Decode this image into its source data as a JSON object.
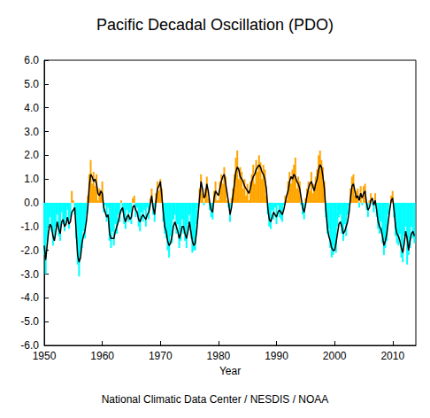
{
  "chart_data": {
    "type": "bar",
    "title": "Pacific Decadal Oscillation (PDO)",
    "xlabel": "Year",
    "annotations": [
      "National Climatic Data Center / NESDIS / NOAA"
    ],
    "xlim": [
      1950,
      2014
    ],
    "xticks": [
      1950,
      1960,
      1970,
      1980,
      1990,
      2000,
      2010
    ],
    "ylim": [
      -6,
      6
    ],
    "yticks": [
      {
        "value": -6,
        "label": "-6.0"
      },
      {
        "value": -5,
        "label": "-5.0"
      },
      {
        "value": -4,
        "label": "-4.0"
      },
      {
        "value": -3,
        "label": "-3.0"
      },
      {
        "value": -2,
        "label": "-2.0"
      },
      {
        "value": -1,
        "label": "-1.0"
      },
      {
        "value": 0,
        "label": "0.0"
      },
      {
        "value": 1,
        "label": "1.0"
      },
      {
        "value": 2,
        "label": "2.0"
      },
      {
        "value": 3,
        "label": "3.0"
      },
      {
        "value": 4,
        "label": "4.0"
      },
      {
        "value": 5,
        "label": "5.0"
      },
      {
        "value": 6,
        "label": "6.0"
      }
    ],
    "grid": false,
    "x": [
      1950,
      1950.25,
      1950.5,
      1950.75,
      1951,
      1951.25,
      1951.5,
      1951.75,
      1952,
      1952.25,
      1952.5,
      1952.75,
      1953,
      1953.25,
      1953.5,
      1953.75,
      1954,
      1954.25,
      1954.5,
      1954.75,
      1955,
      1955.25,
      1955.5,
      1955.75,
      1956,
      1956.25,
      1956.5,
      1956.75,
      1957,
      1957.25,
      1957.5,
      1957.75,
      1958,
      1958.25,
      1958.5,
      1958.75,
      1959,
      1959.25,
      1959.5,
      1959.75,
      1960,
      1960.25,
      1960.5,
      1960.75,
      1961,
      1961.25,
      1961.5,
      1961.75,
      1962,
      1962.25,
      1962.5,
      1962.75,
      1963,
      1963.25,
      1963.5,
      1963.75,
      1964,
      1964.25,
      1964.5,
      1964.75,
      1965,
      1965.25,
      1965.5,
      1965.75,
      1966,
      1966.25,
      1966.5,
      1966.75,
      1967,
      1967.25,
      1967.5,
      1967.75,
      1968,
      1968.25,
      1968.5,
      1968.75,
      1969,
      1969.25,
      1969.5,
      1969.75,
      1970,
      1970.25,
      1970.5,
      1970.75,
      1971,
      1971.25,
      1971.5,
      1971.75,
      1972,
      1972.25,
      1972.5,
      1972.75,
      1973,
      1973.25,
      1973.5,
      1973.75,
      1974,
      1974.25,
      1974.5,
      1974.75,
      1975,
      1975.25,
      1975.5,
      1975.75,
      1976,
      1976.25,
      1976.5,
      1976.75,
      1977,
      1977.25,
      1977.5,
      1977.75,
      1978,
      1978.25,
      1978.5,
      1978.75,
      1979,
      1979.25,
      1979.5,
      1979.75,
      1980,
      1980.25,
      1980.5,
      1980.75,
      1981,
      1981.25,
      1981.5,
      1981.75,
      1982,
      1982.25,
      1982.5,
      1982.75,
      1983,
      1983.25,
      1983.5,
      1983.75,
      1984,
      1984.25,
      1984.5,
      1984.75,
      1985,
      1985.25,
      1985.5,
      1985.75,
      1986,
      1986.25,
      1986.5,
      1986.75,
      1987,
      1987.25,
      1987.5,
      1987.75,
      1988,
      1988.25,
      1988.5,
      1988.75,
      1989,
      1989.25,
      1989.5,
      1989.75,
      1990,
      1990.25,
      1990.5,
      1990.75,
      1991,
      1991.25,
      1991.5,
      1991.75,
      1992,
      1992.25,
      1992.5,
      1992.75,
      1993,
      1993.25,
      1993.5,
      1993.75,
      1994,
      1994.25,
      1994.5,
      1994.75,
      1995,
      1995.25,
      1995.5,
      1995.75,
      1996,
      1996.25,
      1996.5,
      1996.75,
      1997,
      1997.25,
      1997.5,
      1997.75,
      1998,
      1998.25,
      1998.5,
      1998.75,
      1999,
      1999.25,
      1999.5,
      1999.75,
      2000,
      2000.25,
      2000.5,
      2000.75,
      2001,
      2001.25,
      2001.5,
      2001.75,
      2002,
      2002.25,
      2002.5,
      2002.75,
      2003,
      2003.25,
      2003.5,
      2003.75,
      2004,
      2004.25,
      2004.5,
      2004.75,
      2005,
      2005.25,
      2005.5,
      2005.75,
      2006,
      2006.25,
      2006.5,
      2006.75,
      2007,
      2007.25,
      2007.5,
      2007.75,
      2008,
      2008.25,
      2008.5,
      2008.75,
      2009,
      2009.25,
      2009.5,
      2009.75,
      2010,
      2010.25,
      2010.5,
      2010.75,
      2011,
      2011.25,
      2011.5,
      2011.75,
      2012,
      2012.25,
      2012.5,
      2012.75,
      2013,
      2013.25,
      2013.5,
      2013.75
    ],
    "series": [
      {
        "type": "bar",
        "values": [
          -2.2,
          -3.0,
          -1.6,
          -1.0,
          -0.6,
          -1.2,
          -1.8,
          -1.5,
          -1.0,
          -0.5,
          -1.4,
          -1.6,
          -0.4,
          -0.9,
          -1.2,
          -0.7,
          -0.3,
          -1.1,
          -0.6,
          0.5,
          0.1,
          -0.5,
          -1.5,
          -2.6,
          -3.1,
          -2.2,
          -1.9,
          -1.2,
          -1.5,
          -0.5,
          0.3,
          1.2,
          1.8,
          0.8,
          1.3,
          0.7,
          1.2,
          0.1,
          0.6,
          0.4,
          0.9,
          -0.4,
          -0.1,
          -0.8,
          -0.2,
          -1.6,
          -1.9,
          -1.2,
          -1.8,
          -0.9,
          -1.3,
          -0.5,
          -0.8,
          0.1,
          -0.4,
          -0.9,
          -1.1,
          -0.3,
          -0.8,
          -0.4,
          -0.9,
          0.2,
          0.3,
          -0.6,
          -0.2,
          -1.0,
          -1.2,
          -0.4,
          -0.8,
          -0.3,
          -1.0,
          -0.2,
          -0.7,
          0.2,
          0.6,
          -0.5,
          -0.8,
          0.4,
          0.9,
          0.5,
          1.0,
          0.6,
          -0.8,
          -1.3,
          -1.5,
          -2.0,
          -2.3,
          -1.4,
          -1.7,
          -0.7,
          -0.5,
          -1.3,
          -0.9,
          -1.9,
          -1.6,
          -0.7,
          -1.3,
          -1.6,
          -1.9,
          -0.9,
          -0.5,
          -1.5,
          -2.1,
          -2.0,
          -2.0,
          -0.9,
          -0.2,
          0.6,
          1.2,
          0.4,
          -0.1,
          0.6,
          1.1,
          0.2,
          -0.3,
          -0.6,
          -0.7,
          0.5,
          0.9,
          0.1,
          0.1,
          0.9,
          1.2,
          0.8,
          1.5,
          1.1,
          0.1,
          -0.2,
          -0.8,
          0.2,
          0.6,
          1.2,
          1.9,
          2.2,
          1.0,
          1.5,
          1.3,
          0.6,
          1.0,
          0.3,
          0.8,
          0.1,
          0.9,
          1.2,
          1.6,
          0.8,
          1.8,
          1.3,
          2.0,
          1.7,
          1.0,
          1.6,
          1.4,
          0.3,
          -0.5,
          -1.0,
          -1.1,
          -0.3,
          -0.7,
          -0.2,
          -0.9,
          -0.1,
          -0.6,
          -0.7,
          -0.8,
          -0.1,
          0.3,
          0.1,
          0.9,
          1.3,
          0.8,
          1.4,
          1.6,
          1.9,
          0.6,
          1.1,
          0.9,
          -0.1,
          -0.5,
          -0.7,
          0.2,
          0.6,
          0.9,
          0.5,
          1.3,
          0.4,
          0.8,
          1.1,
          1.4,
          2.0,
          2.2,
          1.8,
          1.5,
          0.9,
          -0.6,
          -1.3,
          -1.1,
          -1.9,
          -2.3,
          -2.2,
          -1.8,
          -2.1,
          -1.0,
          -0.6,
          -0.5,
          -1.3,
          -1.6,
          -0.9,
          -1.4,
          -0.5,
          -0.1,
          0.6,
          1.1,
          1.2,
          0.3,
          0.5,
          0.6,
          -0.2,
          0.7,
          -0.1,
          0.7,
          0.8,
          -0.3,
          -0.6,
          0.1,
          0.4,
          -0.1,
          -0.4,
          0.4,
          -0.6,
          -1.1,
          -1.3,
          -0.8,
          -1.7,
          -2.2,
          -1.9,
          -1.6,
          -0.5,
          0.0,
          0.3,
          0.5,
          -0.6,
          -1.4,
          -1.7,
          -1.8,
          -1.3,
          -2.3,
          -2.5,
          -1.4,
          -1.0,
          -2.6,
          -2.2,
          -1.9,
          -1.0,
          -1.5,
          -1.7
        ],
        "colors": [
          "#00ffff",
          "#00ffff",
          "#00ffff",
          "#00ffff",
          "#00ffff",
          "#00ffff",
          "#00ffff",
          "#00ffff",
          "#00ffff",
          "#00ffff",
          "#00ffff",
          "#00ffff",
          "#00ffff",
          "#00ffff",
          "#00ffff",
          "#00ffff",
          "#00ffff",
          "#00ffff",
          "#00ffff",
          "#ffa500",
          "#ffa500",
          "#00ffff",
          "#00ffff",
          "#00ffff",
          "#00ffff",
          "#00ffff",
          "#00ffff",
          "#00ffff",
          "#00ffff",
          "#00ffff",
          "#ffa500",
          "#ffa500",
          "#ffa500",
          "#ffa500",
          "#ffa500",
          "#ffa500",
          "#ffa500",
          "#ffa500",
          "#ffa500",
          "#ffa500",
          "#ffa500",
          "#00ffff",
          "#00ffff",
          "#00ffff",
          "#00ffff",
          "#00ffff",
          "#00ffff",
          "#00ffff",
          "#00ffff",
          "#00ffff",
          "#00ffff",
          "#00ffff",
          "#00ffff",
          "#ffa500",
          "#00ffff",
          "#00ffff",
          "#00ffff",
          "#00ffff",
          "#00ffff",
          "#00ffff",
          "#00ffff",
          "#ffa500",
          "#ffa500",
          "#00ffff",
          "#00ffff",
          "#00ffff",
          "#00ffff",
          "#00ffff",
          "#00ffff",
          "#00ffff",
          "#00ffff",
          "#00ffff",
          "#00ffff",
          "#ffa500",
          "#ffa500",
          "#00ffff",
          "#00ffff",
          "#ffa500",
          "#ffa500",
          "#ffa500",
          "#ffa500",
          "#ffa500",
          "#00ffff",
          "#00ffff",
          "#00ffff",
          "#00ffff",
          "#00ffff",
          "#00ffff",
          "#00ffff",
          "#00ffff",
          "#00ffff",
          "#00ffff",
          "#00ffff",
          "#00ffff",
          "#00ffff",
          "#00ffff",
          "#00ffff",
          "#00ffff",
          "#00ffff",
          "#00ffff",
          "#00ffff",
          "#00ffff",
          "#00ffff",
          "#00ffff",
          "#00ffff",
          "#00ffff",
          "#00ffff",
          "#ffa500",
          "#ffa500",
          "#ffa500",
          "#00ffff",
          "#ffa500",
          "#ffa500",
          "#ffa500",
          "#00ffff",
          "#00ffff",
          "#00ffff",
          "#ffa500",
          "#ffa500",
          "#ffa500",
          "#ffa500",
          "#ffa500",
          "#ffa500",
          "#ffa500",
          "#ffa500",
          "#ffa500",
          "#ffa500",
          "#00ffff",
          "#00ffff",
          "#ffa500",
          "#ffa500",
          "#ffa500",
          "#ffa500",
          "#ffa500",
          "#ffa500",
          "#ffa500",
          "#ffa500",
          "#ffa500",
          "#ffa500",
          "#ffa500",
          "#ffa500",
          "#ffa500",
          "#ffa500",
          "#ffa500",
          "#ffa500",
          "#ffa500",
          "#ffa500",
          "#ffa500",
          "#ffa500",
          "#ffa500",
          "#ffa500",
          "#ffa500",
          "#ffa500",
          "#ffa500",
          "#00ffff",
          "#00ffff",
          "#00ffff",
          "#00ffff",
          "#00ffff",
          "#00ffff",
          "#00ffff",
          "#00ffff",
          "#00ffff",
          "#00ffff",
          "#00ffff",
          "#00ffff",
          "#ffa500",
          "#ffa500",
          "#ffa500",
          "#ffa500",
          "#ffa500",
          "#ffa500",
          "#ffa500",
          "#ffa500",
          "#ffa500",
          "#ffa500",
          "#ffa500",
          "#00ffff",
          "#00ffff",
          "#00ffff",
          "#ffa500",
          "#ffa500",
          "#ffa500",
          "#ffa500",
          "#ffa500",
          "#ffa500",
          "#ffa500",
          "#ffa500",
          "#ffa500",
          "#ffa500",
          "#ffa500",
          "#ffa500",
          "#ffa500",
          "#ffa500",
          "#00ffff",
          "#00ffff",
          "#00ffff",
          "#00ffff",
          "#00ffff",
          "#00ffff",
          "#00ffff",
          "#00ffff",
          "#00ffff",
          "#00ffff",
          "#00ffff",
          "#00ffff",
          "#00ffff",
          "#00ffff",
          "#00ffff",
          "#00ffff",
          "#00ffff",
          "#ffa500",
          "#ffa500",
          "#ffa500",
          "#ffa500",
          "#ffa500",
          "#ffa500",
          "#00ffff",
          "#ffa500",
          "#00ffff",
          "#ffa500",
          "#ffa500",
          "#00ffff",
          "#00ffff",
          "#ffa500",
          "#ffa500",
          "#00ffff",
          "#00ffff",
          "#ffa500",
          "#00ffff",
          "#00ffff",
          "#00ffff",
          "#00ffff",
          "#00ffff",
          "#00ffff",
          "#00ffff",
          "#00ffff",
          "#00ffff",
          "#ffa500",
          "#ffa500",
          "#ffa500",
          "#00ffff",
          "#00ffff",
          "#00ffff",
          "#00ffff",
          "#00ffff",
          "#00ffff",
          "#00ffff",
          "#00ffff",
          "#00ffff",
          "#00ffff",
          "#00ffff",
          "#00ffff",
          "#00ffff",
          "#00ffff",
          "#00ffff"
        ]
      },
      {
        "type": "line",
        "color": "#000000",
        "values": [
          -1.8,
          -2.4,
          -1.8,
          -1.2,
          -0.9,
          -1.0,
          -1.4,
          -1.6,
          -1.2,
          -0.8,
          -1.1,
          -1.3,
          -0.8,
          -0.7,
          -1.0,
          -0.9,
          -0.6,
          -0.9,
          -0.8,
          -0.4,
          -0.3,
          -0.2,
          -1.2,
          -2.2,
          -2.5,
          -2.3,
          -1.7,
          -1.4,
          -1.2,
          -0.8,
          -0.2,
          0.7,
          1.2,
          1.1,
          0.9,
          1.0,
          0.8,
          0.4,
          0.3,
          0.5,
          0.4,
          -0.2,
          -0.4,
          -0.6,
          -0.5,
          -1.3,
          -1.5,
          -1.5,
          -1.5,
          -1.2,
          -1.0,
          -0.8,
          -0.5,
          -0.3,
          -0.2,
          -0.6,
          -0.8,
          -0.6,
          -0.5,
          -0.7,
          -0.6,
          -0.2,
          -0.1,
          -0.3,
          -0.4,
          -0.7,
          -0.8,
          -0.6,
          -0.5,
          -0.6,
          -0.7,
          -0.5,
          -0.4,
          -0.1,
          0.3,
          -0.2,
          -0.5,
          0.1,
          0.6,
          0.7,
          0.9,
          0.3,
          -0.4,
          -1.0,
          -1.2,
          -1.6,
          -1.8,
          -1.7,
          -1.4,
          -1.0,
          -0.8,
          -1.0,
          -1.2,
          -1.5,
          -1.3,
          -1.0,
          -1.0,
          -1.3,
          -1.5,
          -1.2,
          -0.8,
          -1.2,
          -1.6,
          -1.8,
          -1.7,
          -1.2,
          -0.5,
          0.2,
          0.9,
          0.6,
          0.2,
          0.3,
          0.8,
          0.5,
          0.0,
          -0.3,
          -0.4,
          0.2,
          0.5,
          0.4,
          0.3,
          0.6,
          0.9,
          1.1,
          1.2,
          0.8,
          0.4,
          0.0,
          -0.5,
          -0.2,
          0.3,
          0.8,
          1.3,
          1.5,
          1.4,
          1.1,
          1.0,
          0.9,
          0.7,
          0.6,
          0.5,
          0.4,
          0.6,
          0.9,
          1.1,
          1.2,
          1.4,
          1.5,
          1.6,
          1.5,
          1.3,
          1.2,
          1.0,
          0.6,
          -0.2,
          -0.7,
          -0.8,
          -0.6,
          -0.4,
          -0.5,
          -0.6,
          -0.4,
          -0.3,
          -0.4,
          -0.5,
          -0.3,
          0.0,
          0.3,
          0.5,
          0.9,
          1.1,
          1.0,
          1.2,
          1.1,
          0.9,
          0.8,
          0.6,
          0.2,
          -0.2,
          -0.4,
          -0.1,
          0.3,
          0.6,
          0.8,
          0.9,
          0.7,
          0.5,
          0.8,
          1.0,
          1.4,
          1.6,
          1.5,
          1.1,
          0.6,
          -0.3,
          -1.0,
          -1.4,
          -1.6,
          -1.9,
          -2.0,
          -2.0,
          -1.7,
          -1.3,
          -0.9,
          -0.8,
          -1.0,
          -1.3,
          -1.2,
          -1.0,
          -0.8,
          -0.4,
          0.2,
          0.7,
          0.8,
          0.5,
          0.2,
          0.3,
          0.1,
          0.4,
          0.2,
          0.4,
          0.5,
          0.0,
          -0.3,
          -0.2,
          0.1,
          0.2,
          -0.1,
          0.1,
          -0.3,
          -0.8,
          -1.0,
          -1.1,
          -1.4,
          -1.8,
          -1.6,
          -1.3,
          -0.8,
          -0.3,
          0.1,
          0.2,
          -0.3,
          -1.0,
          -1.3,
          -1.4,
          -1.6,
          -1.9,
          -2.1,
          -1.7,
          -1.2,
          -1.5,
          -2.0,
          -1.6,
          -1.3,
          -1.2,
          -1.4
        ]
      }
    ]
  }
}
